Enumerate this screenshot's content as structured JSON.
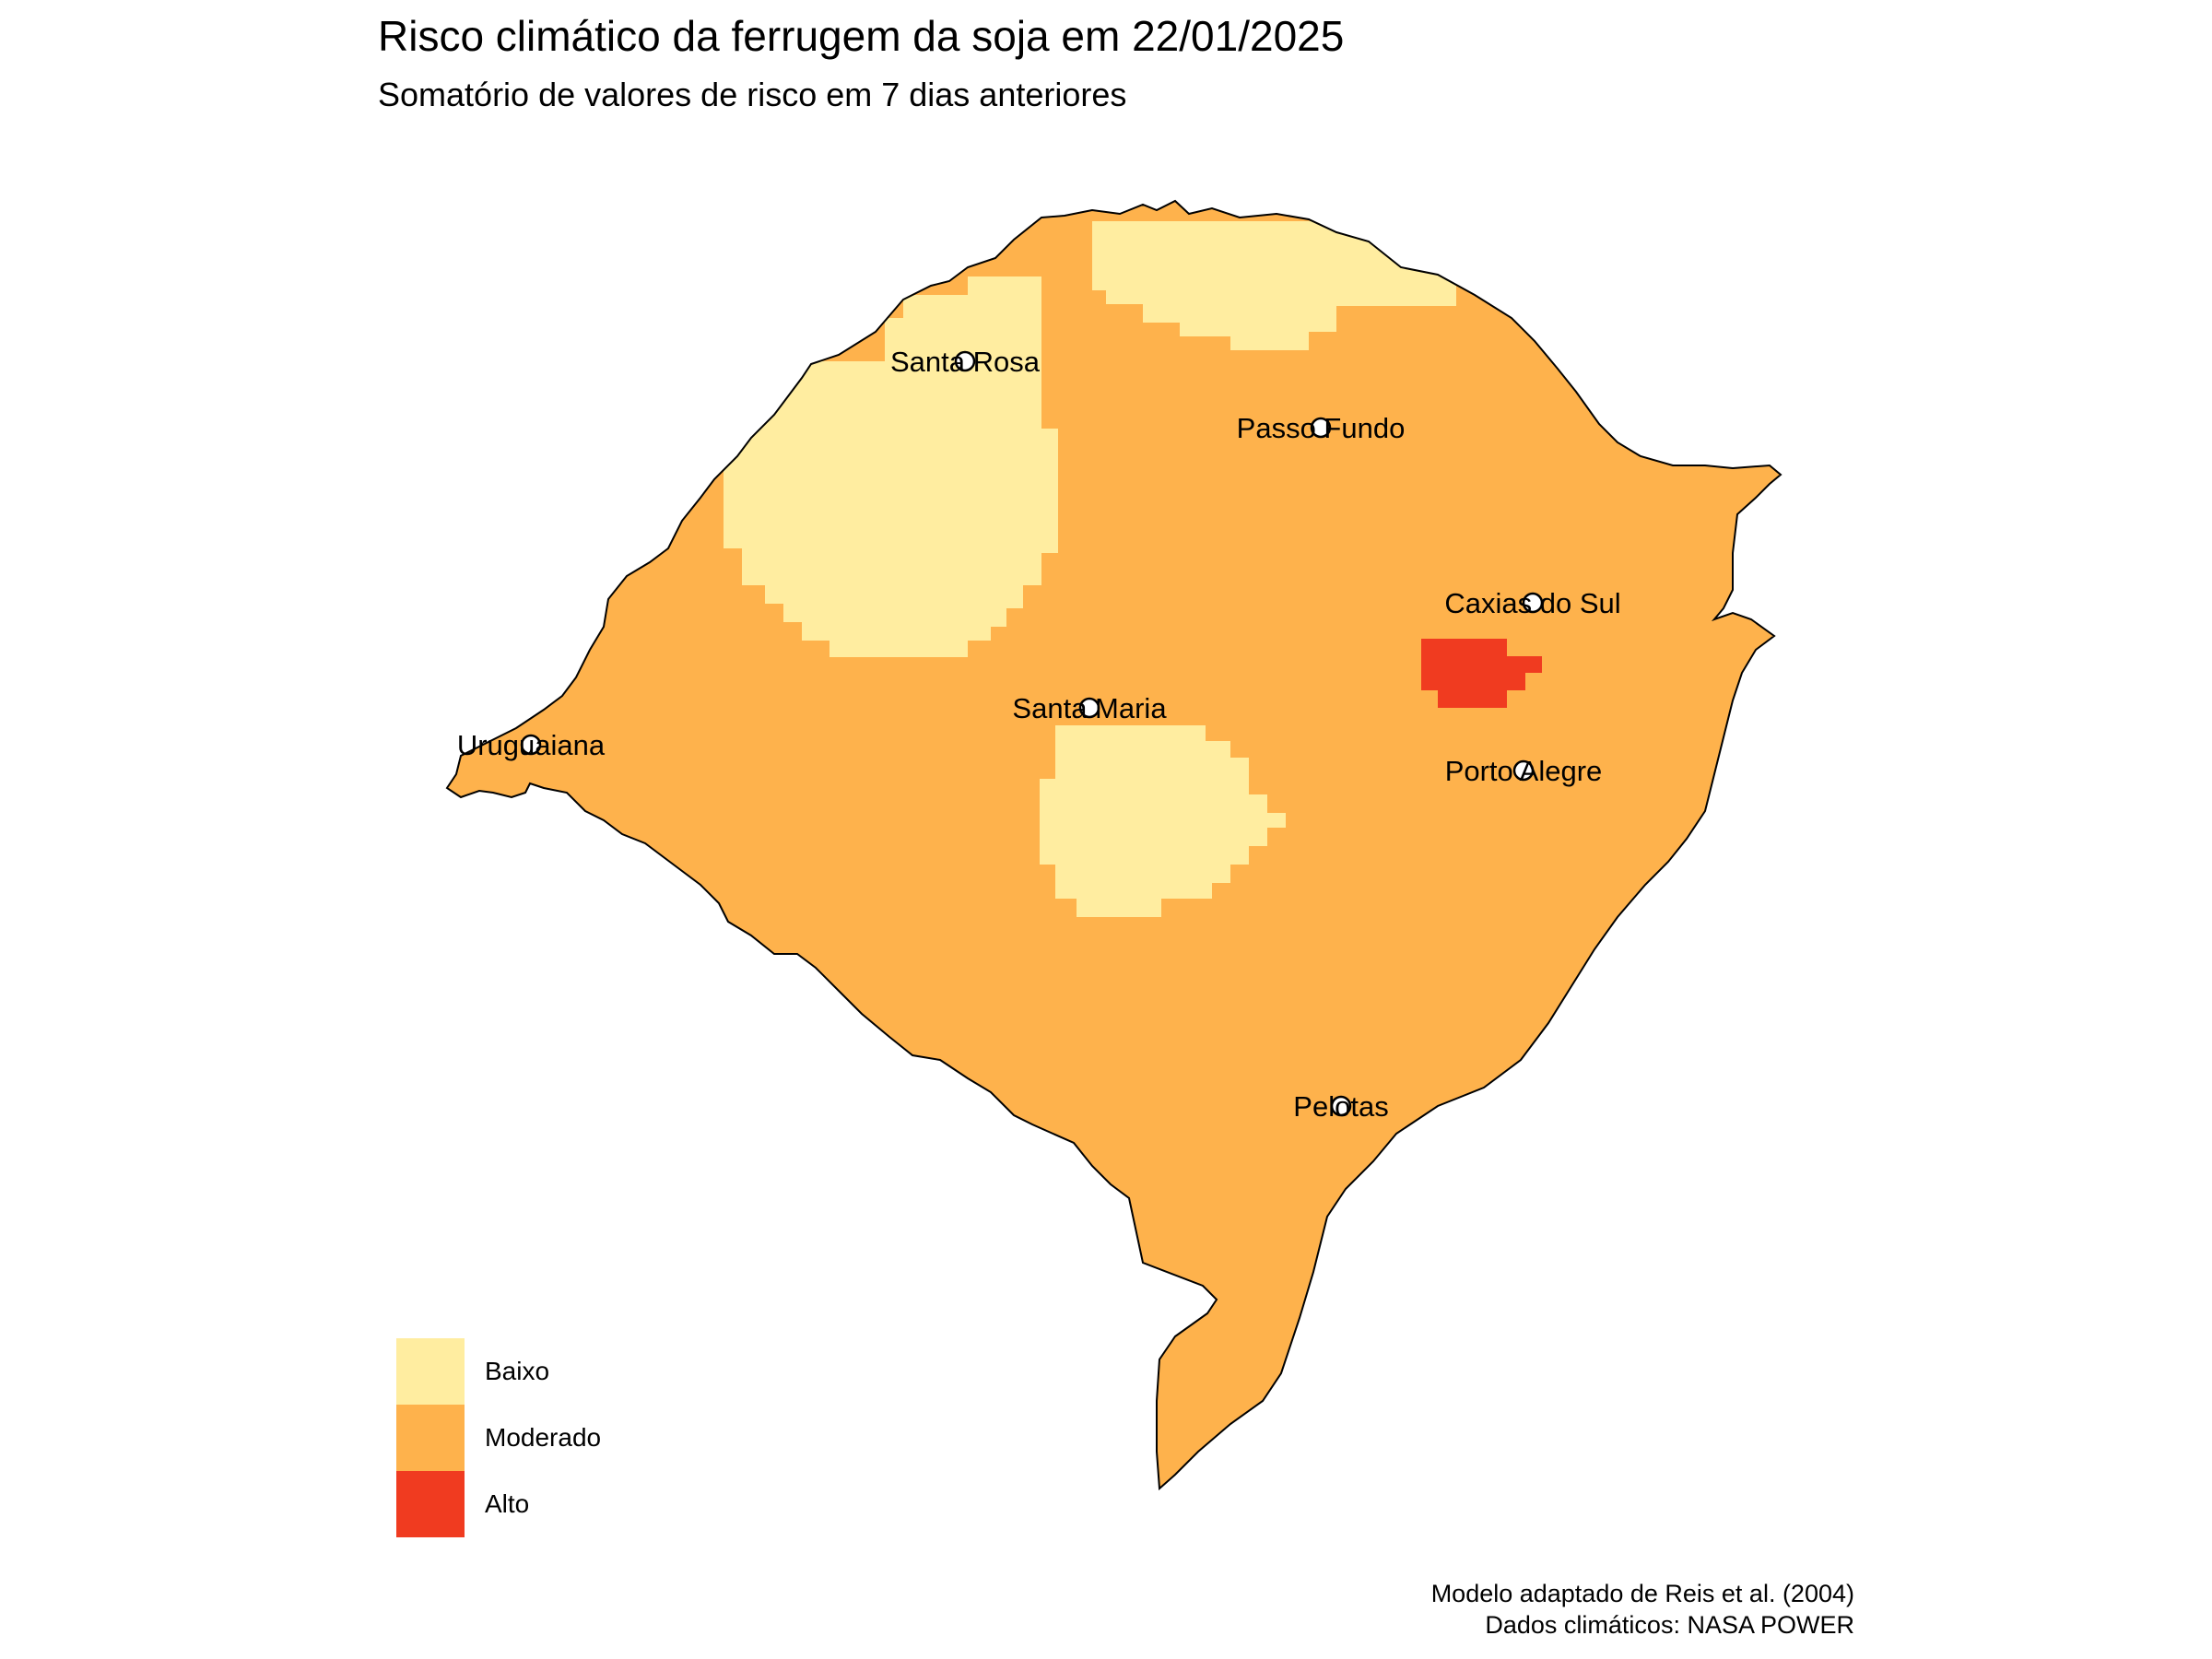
{
  "title": "Risco climático da ferrugem da soja em 22/01/2025",
  "subtitle": "Somatório de valores de risco em 7 dias anteriores",
  "risk_colors": {
    "Baixo": "#FFEDA0",
    "Moderado": "#FEB24C",
    "Alto": "#F03B20"
  },
  "legend": [
    {
      "label": "Baixo",
      "color": "#FFEDA0"
    },
    {
      "label": "Moderado",
      "color": "#FEB24C"
    },
    {
      "label": "Alto",
      "color": "#F03B20"
    }
  ],
  "cities": [
    {
      "name": "Santa Rosa"
    },
    {
      "name": "Passo Fundo"
    },
    {
      "name": "Caxias do Sul"
    },
    {
      "name": "Santa Maria"
    },
    {
      "name": "Uruguaiana"
    },
    {
      "name": "Porto Alegre"
    },
    {
      "name": "Pelotas"
    }
  ],
  "caption": {
    "line1": "Modelo adaptado de Reis et al. (2004)",
    "line2": "Dados climáticos: NASA POWER"
  }
}
